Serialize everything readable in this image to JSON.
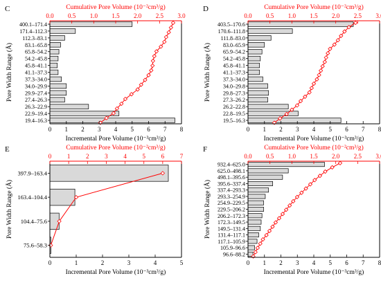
{
  "chart_data": [
    {
      "panel_label": "C",
      "type": "bar",
      "orientation": "horizontal",
      "categories": [
        "400.1–171.4",
        "171.4–112.3",
        "112.3–83.1",
        "83.1–65.8",
        "65.8–54.2",
        "54.2–45.8",
        "45.8–41.1",
        "41.1–37.3",
        "37.3–34.0",
        "34.0–29.9",
        "29.9–27.4",
        "27.4–26.3",
        "26.3–22.9",
        "22.9–19.4",
        "19.4–16.3"
      ],
      "xlabel": "Incremental Pore Volume (10⁻³cm³/g)",
      "ylabel": "Pore Width Range (Å)",
      "top_xlabel": "Cumulative Pore Volume (10⁻²cm³/g)",
      "xlim": [
        0,
        8
      ],
      "xticks": [
        "0",
        "1",
        "2",
        "3",
        "4",
        "5",
        "6",
        "7",
        "8"
      ],
      "top_xlim": [
        0,
        3.0
      ],
      "top_xticks": [
        "0.0",
        "0.5",
        "1.0",
        "1.5",
        "2.0",
        "2.5",
        "3.0"
      ],
      "series": [
        {
          "kind": "bar",
          "values": [
            5.0,
            1.55,
            0.9,
            0.65,
            0.55,
            0.5,
            0.45,
            0.5,
            0.7,
            1.0,
            1.0,
            0.9,
            2.35,
            4.2,
            7.6
          ]
        },
        {
          "kind": "line",
          "x": [
            1.15,
            1.29,
            1.45,
            1.53,
            1.63,
            1.72,
            1.86,
            2.0,
            2.08,
            2.17,
            2.25,
            2.31,
            2.34,
            2.35,
            2.38,
            2.43,
            2.53,
            2.61,
            2.65,
            2.71,
            2.76,
            2.81
          ]
        }
      ]
    },
    {
      "panel_label": "D",
      "type": "bar",
      "orientation": "horizontal",
      "categories": [
        "403.5–170.6",
        "170.6–111.8",
        "111.8–83.0",
        "83.0–65.9",
        "65.9–54.2",
        "54.2–45.8",
        "45.8–41.1",
        "41.1–37.3",
        "37.3–34.0",
        "34.0–29.8",
        "29.8–27.3",
        "27.3–26.2",
        "26.2–22.8",
        "22.8–19.5",
        "19.5–16.3"
      ],
      "xlabel": "Incremental Pore Volume (10⁻³cm³/g)",
      "ylabel": "Pore Width Range (Å)",
      "top_xlabel": "Cumulative Pore Volume (10⁻²cm³/g)",
      "xlim": [
        0,
        8
      ],
      "xticks": [
        "0",
        "1",
        "2",
        "3",
        "4",
        "5",
        "6",
        "7",
        "8"
      ],
      "top_xlim": [
        0,
        3.0
      ],
      "top_xticks": [
        "0.0",
        "0.5",
        "1.0",
        "1.5",
        "2.0",
        "2.5",
        "3.0"
      ],
      "series": [
        {
          "kind": "bar",
          "values": [
            6.4,
            2.7,
            1.4,
            1.0,
            0.85,
            0.75,
            0.7,
            0.7,
            0.9,
            1.2,
            1.25,
            1.2,
            2.45,
            3.05,
            5.65
          ]
        },
        {
          "kind": "line",
          "x": [
            0.6,
            0.73,
            0.88,
            1.0,
            1.12,
            1.2,
            1.3,
            1.4,
            1.45,
            1.5,
            1.57,
            1.62,
            1.66,
            1.7,
            1.75,
            1.78,
            1.82,
            1.87,
            1.97,
            2.05,
            2.12,
            2.2,
            2.3,
            2.45
          ]
        }
      ]
    },
    {
      "panel_label": "E",
      "type": "bar",
      "orientation": "horizontal",
      "categories": [
        "397.9–163.4",
        "163.4–104.4",
        "104.4–75.6",
        "75.6–58.3"
      ],
      "xlabel": "Incremental Pore Volume (10⁻³cm³/g)",
      "ylabel": "Pore Width Range (Å)",
      "top_xlabel": "Cumulative Pore Volume (10⁻²cm³/g)",
      "xlim": [
        0,
        5
      ],
      "xticks": [
        "0",
        "1",
        "2",
        "3",
        "4",
        "5"
      ],
      "top_xlim": [
        0,
        7
      ],
      "top_xticks": [
        "0",
        "1",
        "2",
        "3",
        "4",
        "5",
        "6",
        "7"
      ],
      "series": [
        {
          "kind": "bar",
          "values": [
            4.5,
            0.95,
            0.35,
            0.04
          ]
        },
        {
          "kind": "line",
          "x": [
            0.05,
            0.5,
            1.4,
            6.0
          ]
        }
      ]
    },
    {
      "panel_label": "F",
      "type": "bar",
      "orientation": "horizontal",
      "categories": [
        "932.4–625.0",
        "625.0–498.1",
        "498.1–395.6",
        "395.6–337.4",
        "337.4–293.3",
        "293.3–254.9",
        "254.9–229.5",
        "229.5–206.2",
        "206.2–172.3",
        "172.3–149.5",
        "149.5–131.4",
        "131.4–117.1",
        "117.1–105.9",
        "105.9–96.6",
        "96.6–88.2"
      ],
      "xlabel": "Incremental Pore Volume (10⁻³cm³/g)",
      "ylabel": "Pore Width Range (Å)",
      "top_xlabel": "Cumulative Pore Volume (10⁻²cm³/g)",
      "xlim": [
        0,
        8
      ],
      "xticks": [
        "0",
        "1",
        "2",
        "3",
        "4",
        "5",
        "6",
        "7",
        "8"
      ],
      "top_xlim": [
        0,
        3.0
      ],
      "top_xticks": [
        "0.0",
        "0.5",
        "1.0",
        "1.5",
        "2.0",
        "2.5",
        "3.0"
      ],
      "series": [
        {
          "kind": "bar",
          "values": [
            4.65,
            2.45,
            2.1,
            1.5,
            1.25,
            1.05,
            0.95,
            0.95,
            0.85,
            0.8,
            0.75,
            0.65,
            0.55,
            0.4,
            0.3
          ]
        },
        {
          "kind": "line",
          "x": [
            0.12,
            0.17,
            0.22,
            0.28,
            0.34,
            0.42,
            0.49,
            0.56,
            0.63,
            0.71,
            0.79,
            0.87,
            0.95,
            1.03,
            1.12,
            1.22,
            1.32,
            1.42,
            1.52,
            1.64,
            1.76,
            1.92,
            2.1
          ]
        }
      ]
    }
  ],
  "colors": {
    "bar_fill": "#d9d9d9",
    "bar_stroke": "#000000",
    "cumulative": "#ff0000"
  }
}
